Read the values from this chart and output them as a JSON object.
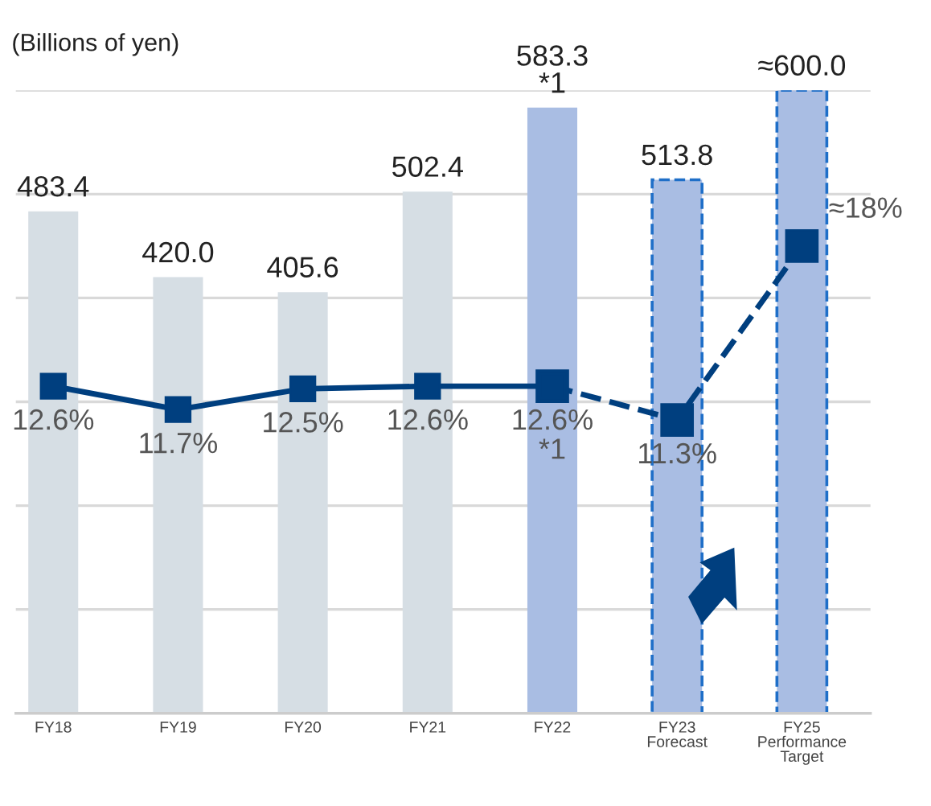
{
  "chart_data": {
    "type": "bar",
    "ylabel": "(Billions of yen)",
    "categories": [
      "FY18",
      "FY19",
      "FY20",
      "FY21",
      "FY22",
      "FY23\nForecast",
      "FY25\nPerformance\nTarget"
    ],
    "series": [
      {
        "color": "#d6dee4",
        "values": [
          483.4,
          420.0,
          405.6,
          502.4,
          null,
          null,
          null
        ],
        "value_labels": [
          "483.4",
          "420.0",
          "405.6",
          "502.4",
          null,
          null,
          null
        ]
      },
      {
        "color": "#a9bde3",
        "values": [
          null,
          null,
          null,
          null,
          583.3,
          null,
          null
        ],
        "value_labels": [
          null,
          null,
          null,
          null,
          "583.3\n*1",
          null,
          null
        ]
      },
      {
        "color": "#a9bde3",
        "line_style": "dashed",
        "values": [
          null,
          null,
          null,
          null,
          null,
          513.8,
          600.0
        ],
        "value_labels": [
          null,
          null,
          null,
          null,
          null,
          "513.8",
          "≈600.0"
        ]
      },
      {
        "type": "line",
        "axis": "y2",
        "color": "#003f7f",
        "line_style": "solid",
        "values": [
          12.6,
          11.7,
          12.5,
          12.6,
          12.6,
          null,
          null
        ],
        "value_labels": [
          "12.6%",
          "11.7%",
          "12.5%",
          "12.6%",
          "12.6%\n*1",
          null,
          null
        ]
      },
      {
        "type": "line",
        "axis": "y2",
        "color": "#003f7f",
        "line_style": "dashed",
        "values": [
          null,
          null,
          null,
          null,
          12.6,
          11.3,
          18
        ],
        "value_labels": [
          null,
          null,
          null,
          null,
          null,
          "11.3%",
          "≈18%"
        ]
      }
    ],
    "ylim": [
      0,
      600
    ],
    "yticks": [
      {
        "value": 100,
        "label": null
      },
      {
        "value": 200,
        "label": null
      },
      {
        "value": 300,
        "label": null
      },
      {
        "value": 400,
        "label": null
      },
      {
        "value": 500,
        "label": null
      },
      {
        "value": 600,
        "label": null
      }
    ],
    "y2lim": [
      0,
      24
    ],
    "grid": "y",
    "tick_labels": "x",
    "marker": "square"
  }
}
